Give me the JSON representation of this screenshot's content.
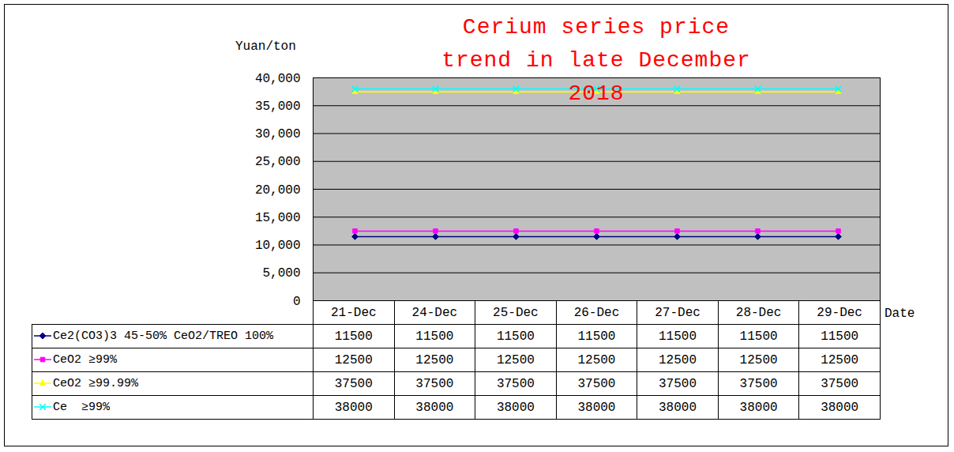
{
  "chart_data": {
    "type": "line",
    "title": "Cerium series price trend in late December 2018",
    "ylabel": "Yuan/ton",
    "xlabel": "Date",
    "categories": [
      "21-Dec",
      "24-Dec",
      "25-Dec",
      "26-Dec",
      "27-Dec",
      "28-Dec",
      "29-Dec"
    ],
    "series": [
      {
        "name": "Ce2(CO3)3 45-50% CeO2/TREO 100%",
        "color": "#000080",
        "marker": "diamond",
        "values": [
          11500,
          11500,
          11500,
          11500,
          11500,
          11500,
          11500
        ]
      },
      {
        "name": "CeO2 ≥99%",
        "color": "#ff00ff",
        "marker": "square",
        "values": [
          12500,
          12500,
          12500,
          12500,
          12500,
          12500,
          12500
        ]
      },
      {
        "name": "CeO2 ≥99.99%",
        "color": "#ffff00",
        "marker": "triangle",
        "values": [
          37500,
          37500,
          37500,
          37500,
          37500,
          37500,
          37500
        ]
      },
      {
        "name": "Ce  ≥99%",
        "color": "#00ffff",
        "marker": "x",
        "values": [
          38000,
          38000,
          38000,
          38000,
          38000,
          38000,
          38000
        ]
      }
    ],
    "ylim": [
      0,
      40000
    ],
    "yticks": [
      0,
      5000,
      10000,
      15000,
      20000,
      25000,
      30000,
      35000,
      40000
    ],
    "grid": true,
    "legend": "bottom"
  }
}
